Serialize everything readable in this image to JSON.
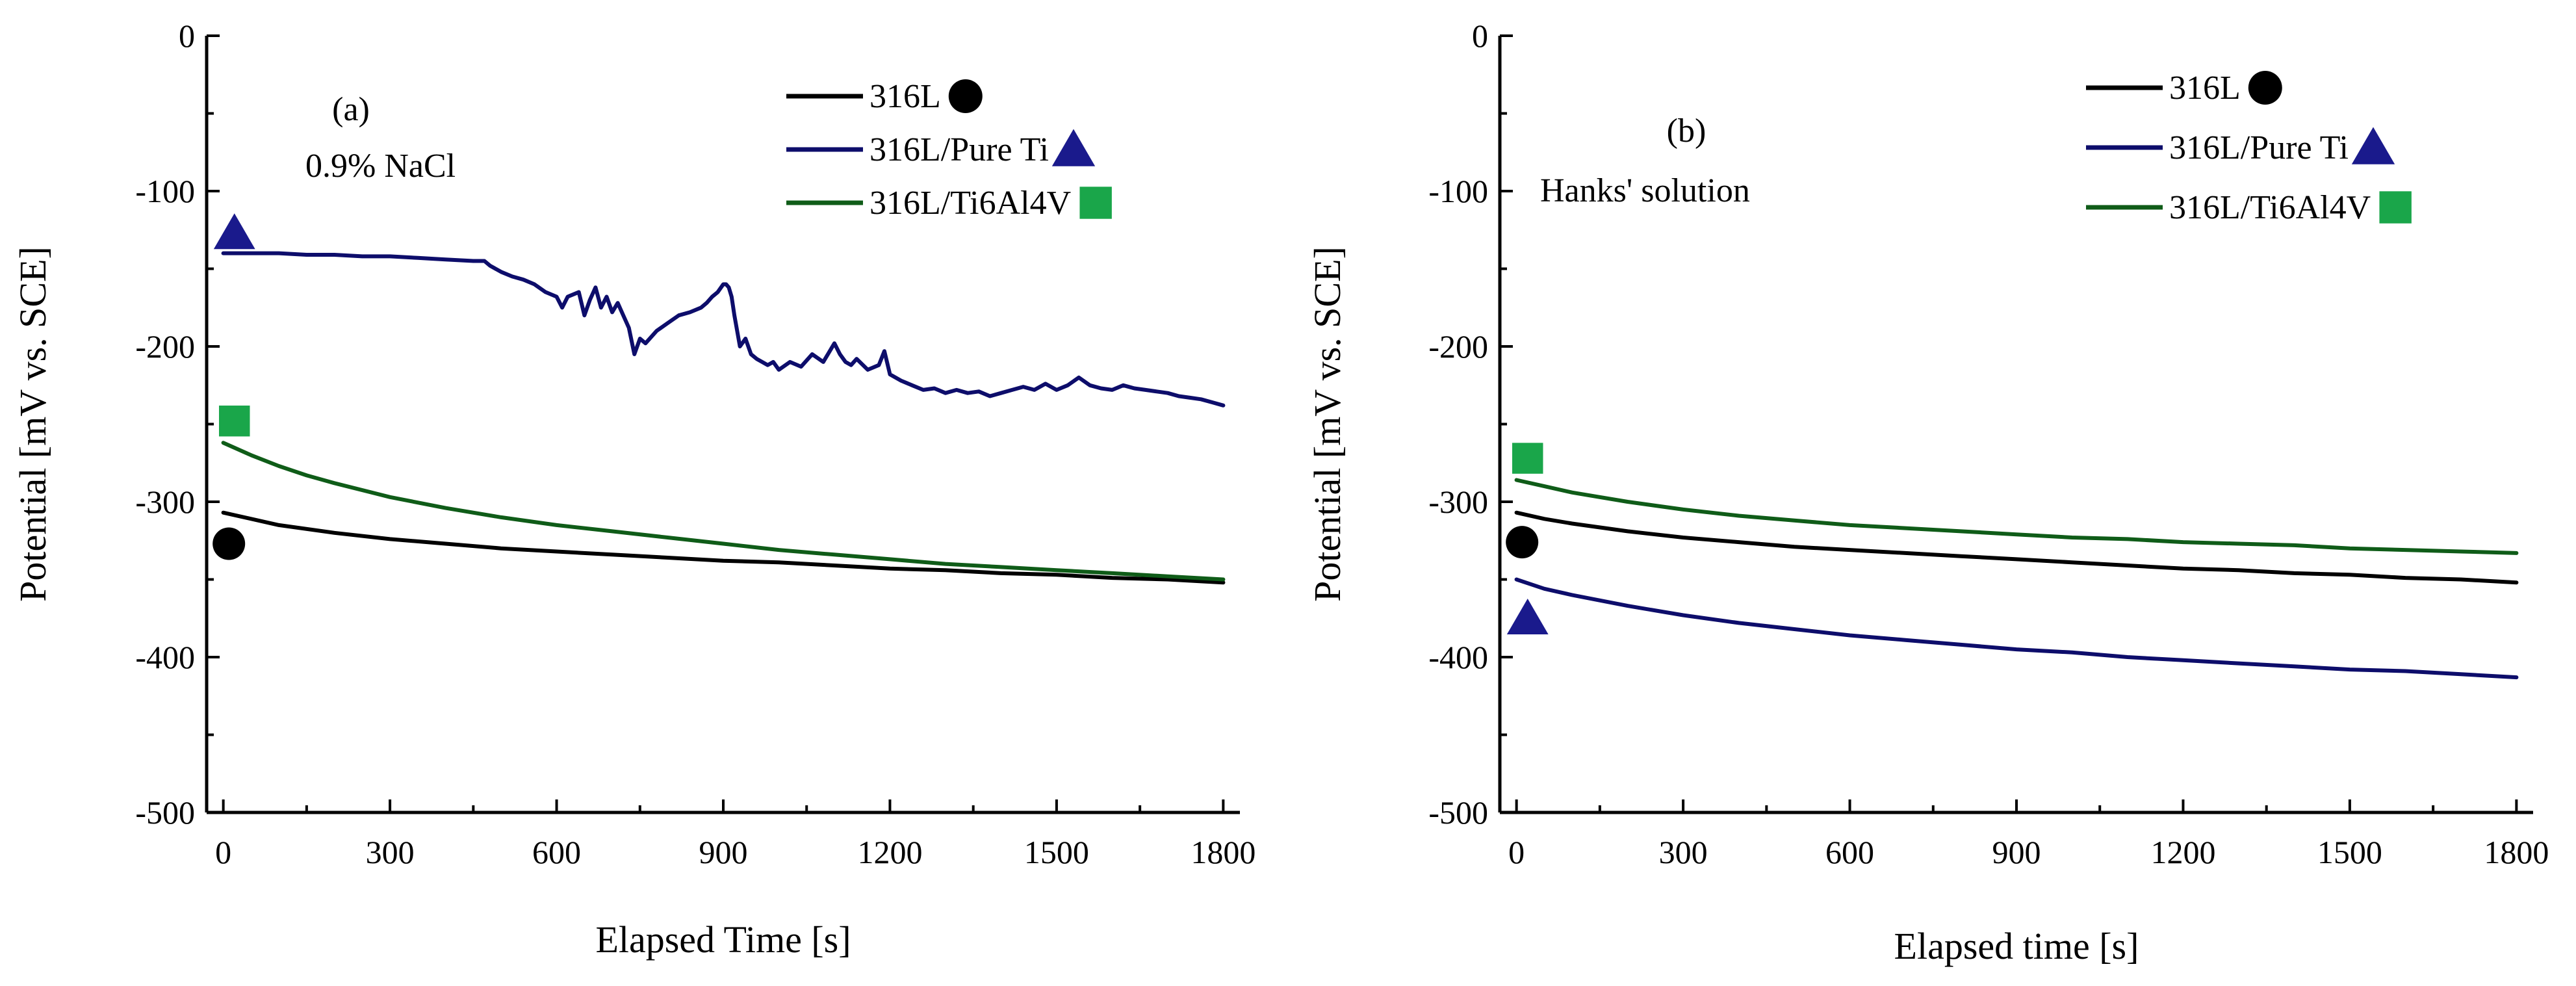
{
  "chart_data": [
    {
      "type": "line",
      "panel_label": "(a)",
      "annotation": "0.9% NaCl",
      "xlabel": "Elapsed Time [s]",
      "ylabel": "Potential [mV vs. SCE]",
      "xlim": [
        -30,
        1830
      ],
      "ylim": [
        -500,
        0
      ],
      "xticks": [
        0,
        300,
        600,
        900,
        1200,
        1500,
        1800
      ],
      "yticks": [
        0,
        -100,
        -200,
        -300,
        -400,
        -500
      ],
      "series": [
        {
          "name": "316L",
          "color": "#000000",
          "marker": "circle",
          "marker_color": "#000000",
          "marker_point": [
            10,
            -327
          ],
          "x": [
            0,
            100,
            200,
            300,
            400,
            500,
            600,
            700,
            800,
            900,
            1000,
            1100,
            1200,
            1300,
            1400,
            1500,
            1600,
            1700,
            1800
          ],
          "y": [
            -307,
            -315,
            -320,
            -324,
            -327,
            -330,
            -332,
            -334,
            -336,
            -338,
            -339,
            -341,
            -343,
            -344,
            -346,
            -347,
            -349,
            -350,
            -352
          ]
        },
        {
          "name": "316L/Pure Ti",
          "color": "#0d0d6b",
          "marker": "triangle",
          "marker_color": "#1a1a8c",
          "marker_point": [
            20,
            -127
          ],
          "x": [
            0,
            50,
            100,
            150,
            200,
            250,
            300,
            350,
            400,
            450,
            470,
            480,
            500,
            520,
            540,
            560,
            580,
            600,
            610,
            620,
            640,
            650,
            660,
            670,
            680,
            690,
            700,
            710,
            720,
            730,
            740,
            750,
            760,
            780,
            800,
            820,
            840,
            860,
            870,
            880,
            890,
            900,
            905,
            910,
            915,
            920,
            930,
            940,
            950,
            960,
            970,
            980,
            990,
            1000,
            1020,
            1040,
            1060,
            1080,
            1100,
            1110,
            1120,
            1130,
            1140,
            1160,
            1180,
            1190,
            1200,
            1220,
            1240,
            1260,
            1280,
            1300,
            1320,
            1340,
            1360,
            1380,
            1400,
            1420,
            1440,
            1460,
            1480,
            1500,
            1520,
            1540,
            1560,
            1580,
            1600,
            1620,
            1640,
            1660,
            1680,
            1700,
            1720,
            1740,
            1760,
            1780,
            1800
          ],
          "y": [
            -140,
            -140,
            -140,
            -141,
            -141,
            -142,
            -142,
            -143,
            -144,
            -145,
            -145,
            -148,
            -152,
            -155,
            -157,
            -160,
            -165,
            -168,
            -175,
            -168,
            -165,
            -180,
            -170,
            -162,
            -175,
            -168,
            -178,
            -172,
            -180,
            -188,
            -205,
            -195,
            -198,
            -190,
            -185,
            -180,
            -178,
            -175,
            -172,
            -168,
            -165,
            -160,
            -160,
            -162,
            -168,
            -180,
            -200,
            -195,
            -205,
            -208,
            -210,
            -212,
            -210,
            -215,
            -210,
            -213,
            -205,
            -210,
            -198,
            -205,
            -210,
            -212,
            -208,
            -215,
            -212,
            -203,
            -218,
            -222,
            -225,
            -228,
            -227,
            -230,
            -228,
            -230,
            -229,
            -232,
            -230,
            -228,
            -226,
            -228,
            -224,
            -228,
            -225,
            -220,
            -225,
            -227,
            -228,
            -225,
            -227,
            -228,
            -229,
            -230,
            -232,
            -233,
            -234,
            -236,
            -238
          ]
        },
        {
          "name": "316L/Ti6Al4V",
          "color": "#0f5c18",
          "marker": "square",
          "marker_color": "#1aa64a",
          "marker_point": [
            20,
            -248
          ],
          "x": [
            0,
            50,
            100,
            150,
            200,
            300,
            400,
            500,
            600,
            700,
            800,
            900,
            1000,
            1100,
            1200,
            1300,
            1400,
            1500,
            1600,
            1700,
            1800
          ],
          "y": [
            -262,
            -270,
            -277,
            -283,
            -288,
            -297,
            -304,
            -310,
            -315,
            -319,
            -323,
            -327,
            -331,
            -334,
            -337,
            -340,
            -342,
            -344,
            -346,
            -348,
            -350
          ]
        }
      ]
    },
    {
      "type": "line",
      "panel_label": "(b)",
      "annotation": "Hanks' solution",
      "xlabel": "Elapsed time [s]",
      "ylabel": "Potential [mV vs. SCE]",
      "xlim": [
        -30,
        1830
      ],
      "ylim": [
        -500,
        0
      ],
      "xticks": [
        0,
        300,
        600,
        900,
        1200,
        1500,
        1800
      ],
      "yticks": [
        0,
        -100,
        -200,
        -300,
        -400,
        -500
      ],
      "series": [
        {
          "name": "316L",
          "color": "#000000",
          "marker": "circle",
          "marker_color": "#000000",
          "marker_point": [
            10,
            -326
          ],
          "x": [
            0,
            50,
            100,
            200,
            300,
            400,
            500,
            600,
            700,
            800,
            900,
            1000,
            1100,
            1200,
            1300,
            1400,
            1500,
            1600,
            1700,
            1800
          ],
          "y": [
            -307,
            -311,
            -314,
            -319,
            -323,
            -326,
            -329,
            -331,
            -333,
            -335,
            -337,
            -339,
            -341,
            -343,
            -344,
            -346,
            -347,
            -349,
            -350,
            -352
          ]
        },
        {
          "name": "316L/Pure Ti",
          "color": "#0d0d6b",
          "marker": "triangle",
          "marker_color": "#1a1a8c",
          "marker_point": [
            20,
            -375
          ],
          "x": [
            0,
            50,
            100,
            200,
            300,
            400,
            500,
            600,
            700,
            800,
            900,
            1000,
            1100,
            1200,
            1300,
            1400,
            1500,
            1600,
            1700,
            1800
          ],
          "y": [
            -350,
            -356,
            -360,
            -367,
            -373,
            -378,
            -382,
            -386,
            -389,
            -392,
            -395,
            -397,
            -400,
            -402,
            -404,
            -406,
            -408,
            -409,
            -411,
            -413
          ]
        },
        {
          "name": "316L/Ti6Al4V",
          "color": "#0f5c18",
          "marker": "square",
          "marker_color": "#1aa64a",
          "marker_point": [
            20,
            -272
          ],
          "x": [
            0,
            50,
            100,
            200,
            300,
            400,
            500,
            600,
            700,
            800,
            900,
            1000,
            1100,
            1200,
            1300,
            1400,
            1500,
            1600,
            1700,
            1800
          ],
          "y": [
            -286,
            -290,
            -294,
            -300,
            -305,
            -309,
            -312,
            -315,
            -317,
            -319,
            -321,
            -323,
            -324,
            -326,
            -327,
            -328,
            -330,
            -331,
            -332,
            -333
          ]
        }
      ]
    }
  ]
}
